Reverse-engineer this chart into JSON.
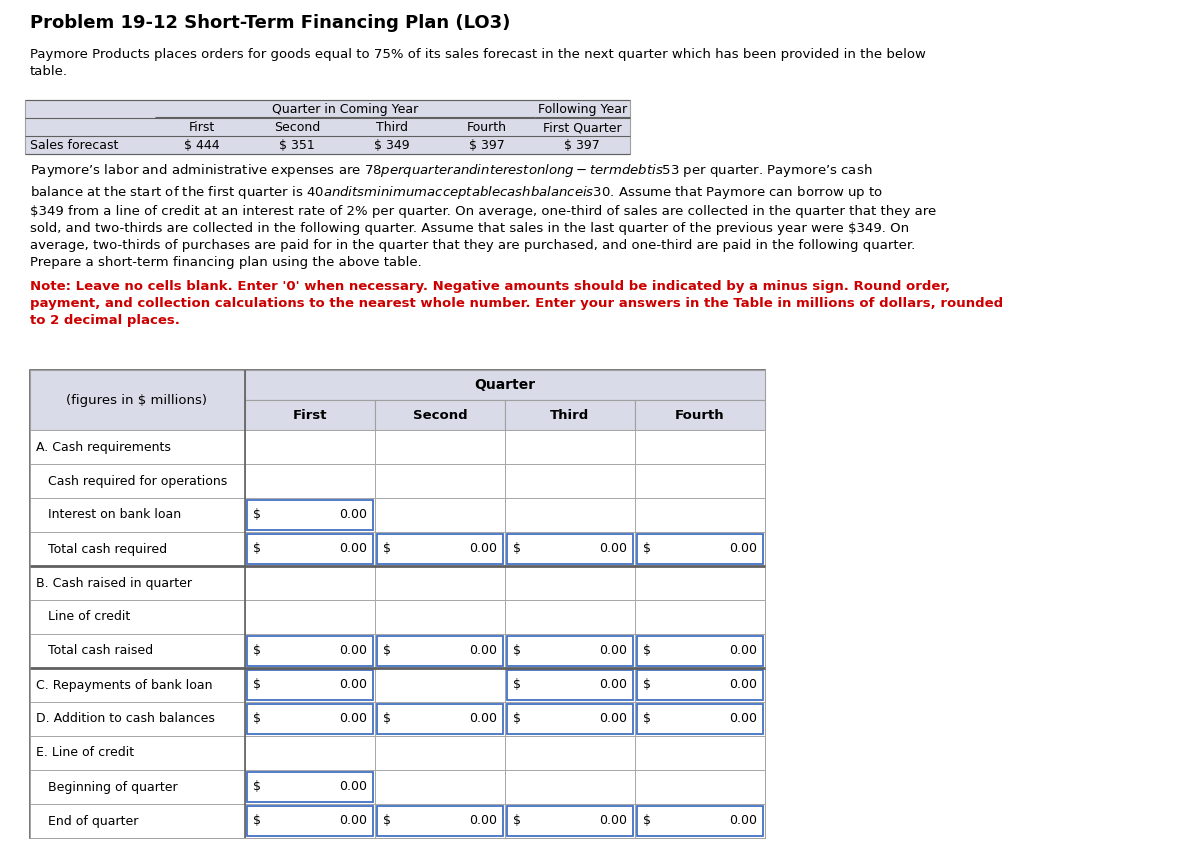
{
  "title": "Problem 19-12 Short-Term Financing Plan (LO3)",
  "intro_text": "Paymore Products places orders for goods equal to 75% of its sales forecast in the next quarter which has been provided in the below\ntable.",
  "body_text": "Paymore’s labor and administrative expenses are $78 per quarter and interest on long-term debt is $53 per quarter. Paymore’s cash\nbalance at the start of the first quarter is $40 and its minimum acceptable cash balance is $30. Assume that Paymore can borrow up to\n$349 from a line of credit at an interest rate of 2% per quarter. On average, one-third of sales are collected in the quarter that they are\nsold, and two-thirds are collected in the following quarter. Assume that sales in the last quarter of the previous year were $349. On\naverage, two-thirds of purchases are paid for in the quarter that they are purchased, and one-third are paid in the following quarter.\nPrepare a short-term financing plan using the above table.",
  "note_text": "Note: Leave no cells blank. Enter '0' when necessary. Negative amounts should be indicated by a minus sign. Round order,\npayment, and collection calculations to the nearest whole number. Enter your answers in the Table in millions of dollars, rounded\nto 2 decimal places.",
  "sales_headers1": [
    "Quarter in Coming Year",
    "Following Year"
  ],
  "sales_headers2": [
    "First",
    "Second",
    "Third",
    "Fourth",
    "First Quarter"
  ],
  "sales_values": [
    "$ 444",
    "$ 351",
    "$ 349",
    "$ 397",
    "$ 397"
  ],
  "sales_label": "Sales forecast",
  "main_table": {
    "quarters": [
      "First",
      "Second",
      "Third",
      "Fourth"
    ],
    "col_header": "(figures in $ millions)",
    "quarter_header": "Quarter",
    "rows": [
      {
        "label": "A. Cash requirements",
        "indent": 0,
        "values": [
          null,
          null,
          null,
          null
        ]
      },
      {
        "label": "   Cash required for operations",
        "indent": 0,
        "values": [
          null,
          null,
          null,
          null
        ]
      },
      {
        "label": "   Interest on bank loan",
        "indent": 0,
        "values": [
          "$ 0.00",
          null,
          null,
          null
        ]
      },
      {
        "label": "   Total cash required",
        "indent": 0,
        "values": [
          "$ 0.00",
          "$ 0.00",
          "$ 0.00",
          "$ 0.00"
        ]
      },
      {
        "label": "B. Cash raised in quarter",
        "indent": 0,
        "values": [
          null,
          null,
          null,
          null
        ]
      },
      {
        "label": "   Line of credit",
        "indent": 0,
        "values": [
          null,
          null,
          null,
          null
        ]
      },
      {
        "label": "   Total cash raised",
        "indent": 0,
        "values": [
          "$ 0.00",
          "$ 0.00",
          "$ 0.00",
          "$ 0.00"
        ]
      },
      {
        "label": "C. Repayments of bank loan",
        "indent": 0,
        "values": [
          "$ 0.00",
          null,
          "$ 0.00",
          "$ 0.00"
        ]
      },
      {
        "label": "D. Addition to cash balances",
        "indent": 0,
        "values": [
          "$ 0.00",
          "$ 0.00",
          "$ 0.00",
          "$ 0.00"
        ]
      },
      {
        "label": "E. Line of credit",
        "indent": 0,
        "values": [
          null,
          null,
          null,
          null
        ]
      },
      {
        "label": "   Beginning of quarter",
        "indent": 0,
        "values": [
          "$ 0.00",
          null,
          null,
          null
        ]
      },
      {
        "label": "   End of quarter",
        "indent": 0,
        "values": [
          "$ 0.00",
          "$ 0.00",
          "$ 0.00",
          "$ 0.00"
        ]
      }
    ]
  },
  "colors": {
    "header_bg": "#d9dce8",
    "cell_bg": "#ffffff",
    "input_border": "#4472c4",
    "grid_line": "#a0a0a0",
    "thick_line": "#606060",
    "text": "#000000",
    "note_text": "#cc0000"
  }
}
